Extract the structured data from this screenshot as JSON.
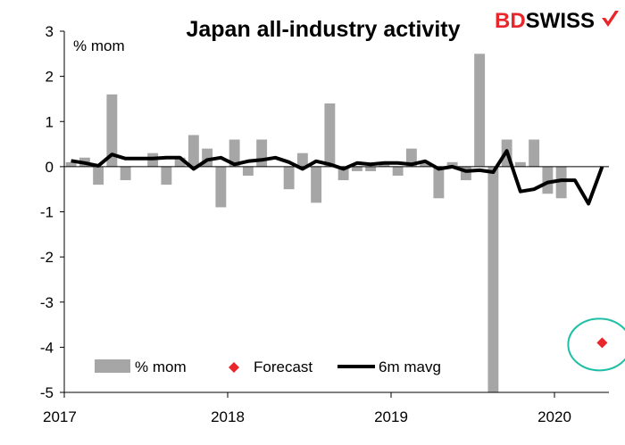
{
  "brand": {
    "prefix": "BD",
    "suffix": "SWISS",
    "prefix_color": "#e8262b",
    "suffix_color": "#000000",
    "mark_color": "#e8262b"
  },
  "chart_data": {
    "type": "bar",
    "title": "Japan all-industry activity",
    "ylabel": "% mom",
    "xlabel": "",
    "ylim": [
      -5,
      3
    ],
    "yticks": [
      3,
      2,
      1,
      0,
      -1,
      -2,
      -3,
      -4,
      -5
    ],
    "x_tick_labels": [
      "2017",
      "2018",
      "2019",
      "2020"
    ],
    "x_range_months": 40,
    "grid": false,
    "legend_position": "bottom-inside",
    "series": [
      {
        "name": "% mom",
        "kind": "bar",
        "color": "#a6a6a6",
        "values": [
          0.1,
          0.2,
          -0.4,
          1.6,
          -0.3,
          0.0,
          0.3,
          -0.4,
          0.2,
          0.7,
          0.4,
          -0.9,
          0.6,
          -0.2,
          0.6,
          0.0,
          -0.5,
          0.3,
          -0.8,
          1.4,
          -0.3,
          -0.1,
          -0.1,
          0.1,
          -0.2,
          0.4,
          0.1,
          -0.7,
          0.1,
          -0.3,
          2.5,
          -5.0,
          0.6,
          0.1,
          0.6,
          -0.6,
          -0.7,
          0.0,
          0.0
        ]
      },
      {
        "name": "6m mavg",
        "kind": "line",
        "color": "#000000",
        "values": [
          0.13,
          0.08,
          0.02,
          0.27,
          0.18,
          0.18,
          0.18,
          0.2,
          0.2,
          -0.05,
          0.15,
          0.2,
          0.05,
          0.12,
          0.15,
          0.2,
          0.1,
          -0.05,
          0.12,
          0.05,
          -0.05,
          0.08,
          0.05,
          0.08,
          0.08,
          0.05,
          0.12,
          -0.05,
          0.0,
          -0.1,
          -0.08,
          -0.12,
          0.35,
          -0.55,
          -0.5,
          -0.35,
          -0.3,
          -0.3,
          -0.82,
          0.0
        ]
      },
      {
        "name": "Forecast",
        "kind": "point",
        "color": "#e8262b",
        "month_index": 39.5,
        "value": -3.9
      }
    ],
    "annotation": {
      "shape": "circle",
      "color": "#1fbfa5",
      "around": "Forecast"
    }
  }
}
